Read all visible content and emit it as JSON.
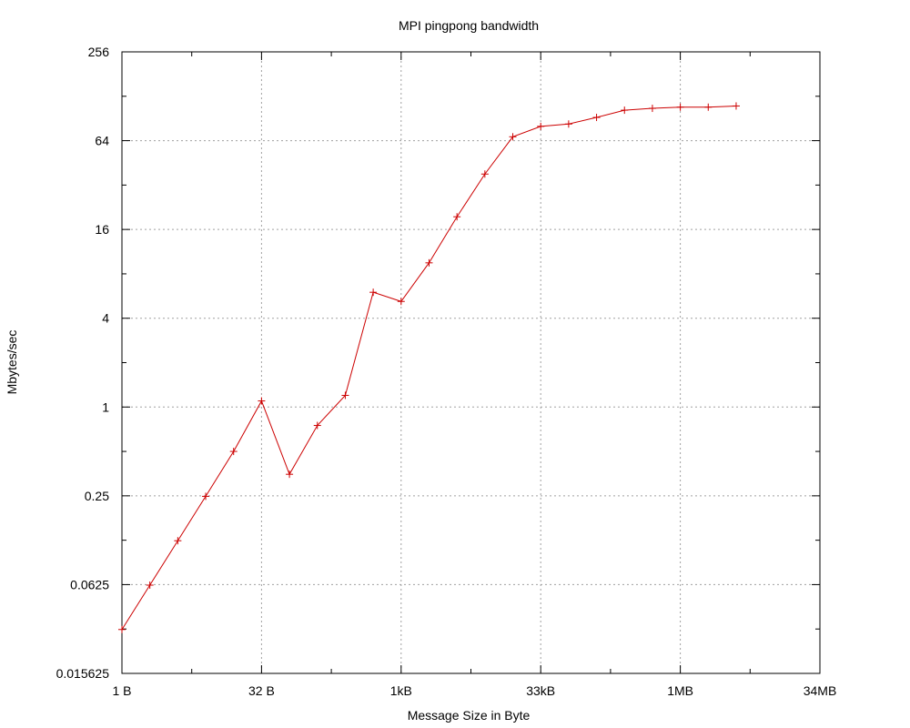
{
  "chart_data": {
    "type": "line",
    "title": "MPI pingpong bandwidth",
    "xlabel": "Message Size in Byte",
    "ylabel": "Mbytes/sec",
    "x_scale": "log2",
    "y_scale": "log2",
    "xlim": [
      1,
      33554432
    ],
    "ylim": [
      0.015625,
      256
    ],
    "x_ticks": [
      {
        "value": 1,
        "label": "1 B"
      },
      {
        "value": 32,
        "label": "32 B"
      },
      {
        "value": 1024,
        "label": "1kB"
      },
      {
        "value": 32768,
        "label": "33kB"
      },
      {
        "value": 1048576,
        "label": "1MB"
      },
      {
        "value": 33554432,
        "label": "34MB"
      }
    ],
    "y_ticks": [
      {
        "value": 0.015625,
        "label": "0.015625"
      },
      {
        "value": 0.0625,
        "label": "0.0625"
      },
      {
        "value": 0.25,
        "label": "0.25"
      },
      {
        "value": 1,
        "label": "1"
      },
      {
        "value": 4,
        "label": "4"
      },
      {
        "value": 16,
        "label": "16"
      },
      {
        "value": 64,
        "label": "64"
      },
      {
        "value": 256,
        "label": "256"
      }
    ],
    "grid": true,
    "line_color": "#cc0000",
    "series": [
      {
        "name": "",
        "x": [
          1,
          2,
          4,
          8,
          16,
          32,
          64,
          128,
          256,
          512,
          1024,
          2048,
          4096,
          8192,
          16384,
          32768,
          65536,
          131072,
          262144,
          524288,
          1048576,
          2097152,
          4194304
        ],
        "y": [
          0.031,
          0.062,
          0.124,
          0.248,
          0.5,
          1.1,
          0.35,
          0.75,
          1.2,
          6.0,
          5.2,
          9.5,
          19.5,
          38,
          68,
          80,
          83,
          92,
          103,
          106,
          108,
          108,
          110
        ]
      }
    ]
  }
}
